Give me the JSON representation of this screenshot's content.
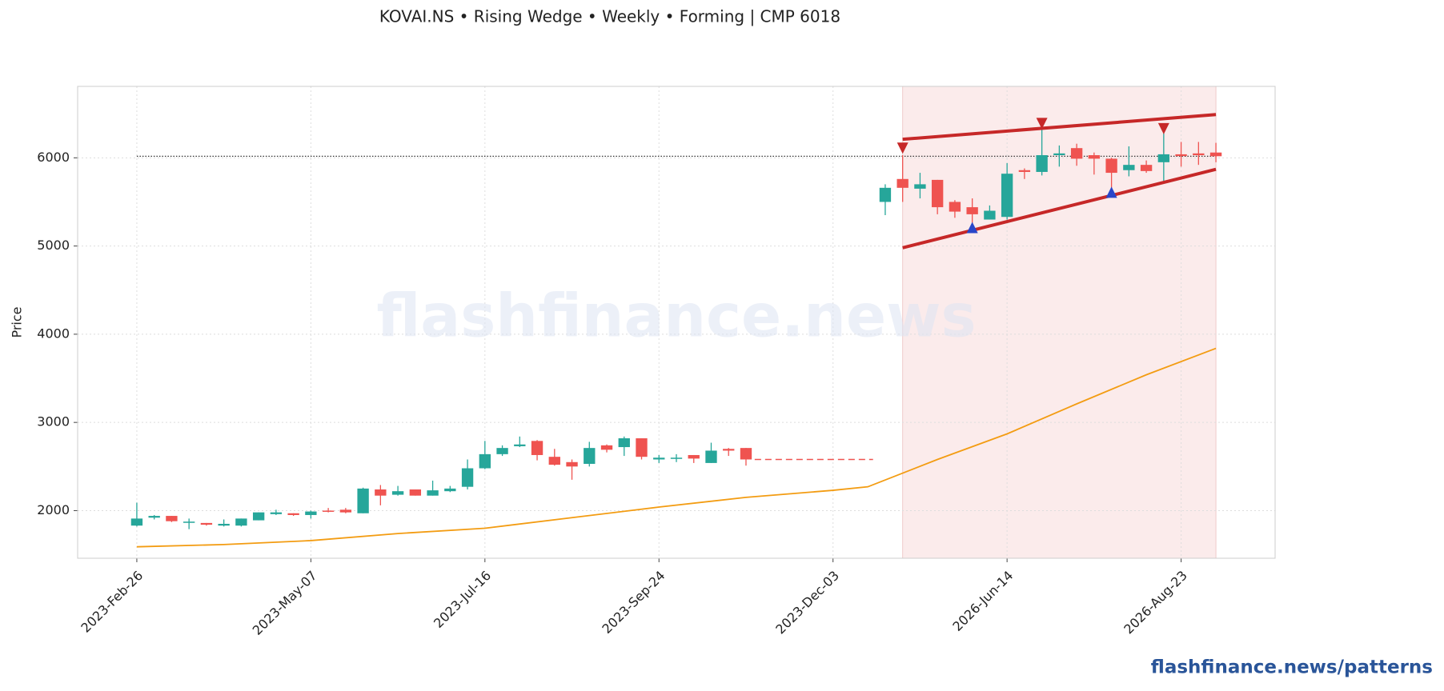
{
  "chart_data": {
    "type": "candlestick",
    "title": "KOVAI.NS  •  Rising Wedge  •  Weekly  •  Forming  |  CMP 6018",
    "y_label": "Price",
    "watermark": "flashfinance.news",
    "footer": "flashfinance.news/patterns",
    "categories": [
      "2023-Feb-26",
      null,
      null,
      null,
      null,
      null,
      null,
      null,
      null,
      null,
      "2023-May-07",
      null,
      null,
      null,
      null,
      null,
      null,
      null,
      null,
      null,
      "2023-Jul-16",
      null,
      null,
      null,
      null,
      null,
      null,
      null,
      null,
      null,
      "2023-Sep-24",
      null,
      null,
      null,
      null,
      null,
      null,
      null,
      null,
      null,
      "2023-Dec-03",
      null,
      null,
      null,
      null,
      null,
      null,
      null,
      null,
      null,
      "2026-Jun-14",
      null,
      null,
      null,
      null,
      null,
      null,
      null,
      null,
      null,
      "2026-Aug-23",
      null,
      null
    ],
    "open": [
      1830,
      1920,
      1940,
      1865,
      1860,
      1830,
      1830,
      1890,
      1960,
      1970,
      1950,
      2000,
      2010,
      1970,
      2240,
      2180,
      2240,
      2170,
      2220,
      2270,
      2480,
      2640,
      2730,
      2790,
      2610,
      2550,
      2530,
      2740,
      2720,
      2820,
      2580,
      2590,
      2630,
      2540,
      2700,
      2710,
      null,
      null,
      null,
      null,
      null,
      null,
      null,
      5500,
      5760,
      5650,
      5750,
      5500,
      5440,
      5300,
      5330,
      5860,
      5840,
      6030,
      6110,
      6030,
      5990,
      5860,
      5920,
      5950,
      6040,
      6050,
      6060
    ],
    "high": [
      2090,
      1950,
      1940,
      1910,
      1860,
      1900,
      1910,
      1980,
      2010,
      1970,
      2000,
      2030,
      2030,
      2260,
      2290,
      2280,
      2240,
      2340,
      2280,
      2580,
      2790,
      2740,
      2840,
      2800,
      2700,
      2580,
      2780,
      2750,
      2840,
      2820,
      2630,
      2640,
      2630,
      2770,
      2710,
      2710,
      null,
      null,
      null,
      null,
      null,
      null,
      null,
      5700,
      6030,
      5830,
      5750,
      5520,
      5540,
      5460,
      5940,
      5880,
      6400,
      6140,
      6160,
      6060,
      6000,
      6130,
      5970,
      6280,
      6180,
      6180,
      6170
    ],
    "low": [
      1820,
      1900,
      1870,
      1790,
      1830,
      1820,
      1820,
      1890,
      1950,
      1940,
      1910,
      1980,
      1970,
      1970,
      2060,
      2170,
      2170,
      2170,
      2210,
      2240,
      2470,
      2620,
      2720,
      2570,
      2510,
      2350,
      2500,
      2660,
      2620,
      2580,
      2540,
      2550,
      2540,
      2540,
      2620,
      2510,
      null,
      null,
      null,
      null,
      null,
      null,
      null,
      5350,
      5500,
      5540,
      5360,
      5320,
      5260,
      5300,
      5300,
      5760,
      5800,
      5900,
      5910,
      5810,
      5580,
      5790,
      5830,
      5740,
      5900,
      5920,
      5950
    ],
    "close": [
      1910,
      1940,
      1880,
      1875,
      1840,
      1850,
      1910,
      1980,
      1980,
      1950,
      1990,
      1990,
      1980,
      2250,
      2170,
      2220,
      2170,
      2230,
      2250,
      2480,
      2640,
      2710,
      2750,
      2630,
      2520,
      2500,
      2710,
      2690,
      2820,
      2610,
      2600,
      2600,
      2590,
      2680,
      2680,
      2580,
      null,
      null,
      null,
      null,
      null,
      null,
      null,
      5660,
      5660,
      5700,
      5440,
      5390,
      5360,
      5400,
      5820,
      5840,
      6030,
      6050,
      5990,
      5990,
      5830,
      5920,
      5850,
      6040,
      6020,
      6030,
      6018
    ],
    "up_color": "#26a69a",
    "down_color": "#ef5350",
    "gap_level": {
      "value": 2580,
      "x": [
        35.5,
        42.3
      ],
      "color": "#ef5350"
    },
    "cmp_level": {
      "value": 6018,
      "x": [
        0,
        62
      ],
      "color": "#333333"
    },
    "moving_average": {
      "x": [
        0,
        5,
        10,
        15,
        20,
        25,
        30,
        35,
        40,
        42,
        46,
        50,
        54,
        58,
        62
      ],
      "values": [
        1590,
        1615,
        1660,
        1740,
        1800,
        1920,
        2040,
        2150,
        2230,
        2270,
        2580,
        2870,
        3210,
        3540,
        3840
      ],
      "color": "#f39c12"
    },
    "pattern_zone": {
      "x": [
        44,
        62
      ],
      "color": "#f9e4e4"
    },
    "upper_line": {
      "x": [
        44,
        62
      ],
      "values": [
        6210,
        6490
      ],
      "color": "#c62828"
    },
    "lower_line": {
      "x": [
        44,
        62
      ],
      "values": [
        4980,
        5870
      ],
      "color": "#c62828"
    },
    "peaks": {
      "x": [
        44,
        52,
        59
      ],
      "values": [
        6110,
        6390,
        6330
      ],
      "color": "#c62828"
    },
    "troughs": {
      "x": [
        48,
        56
      ],
      "values": [
        5210,
        5610
      ],
      "color": "#2946c9"
    },
    "xlim": [
      -3.4,
      65.4
    ],
    "ylim": [
      1460,
      6810
    ],
    "yticks": [
      2000,
      3000,
      4000,
      5000,
      6000
    ],
    "grid": true
  }
}
